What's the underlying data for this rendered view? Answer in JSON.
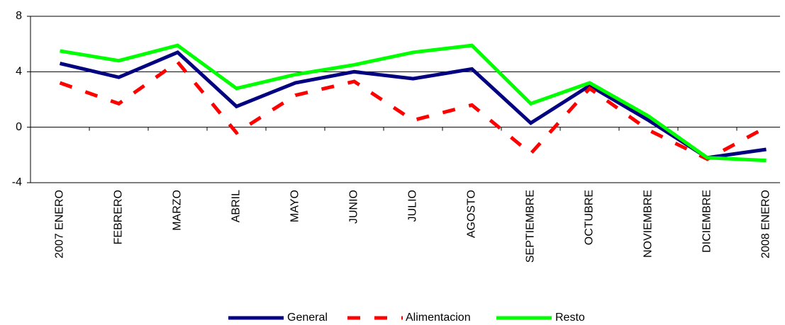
{
  "chart_data": {
    "type": "line",
    "categories": [
      "2007 ENERO",
      "FEBRERO",
      "MARZO",
      "ABRIL",
      "MAYO",
      "JUNIO",
      "JULIO",
      "AGOSTO",
      "SEPTIEMBRE",
      "OCTUBRE",
      "NOVIEMBRE",
      "DICIEMBRE",
      "2008 ENERO"
    ],
    "series": [
      {
        "name": "General",
        "color": "#000080",
        "values": [
          4.6,
          3.6,
          5.4,
          1.5,
          3.2,
          4.0,
          3.5,
          4.2,
          0.3,
          3.0,
          0.5,
          -2.2,
          -1.6
        ]
      },
      {
        "name": "Alimentacion",
        "color": "#ff0000",
        "dashed": true,
        "values": [
          3.2,
          1.7,
          4.7,
          -0.4,
          2.3,
          3.3,
          0.5,
          1.6,
          -1.9,
          2.8,
          -0.2,
          -2.3,
          0.0
        ]
      },
      {
        "name": "Resto",
        "color": "#00ff00",
        "values": [
          5.5,
          4.8,
          5.9,
          2.8,
          3.8,
          4.5,
          5.4,
          5.9,
          1.7,
          3.2,
          0.8,
          -2.2,
          -2.4
        ]
      }
    ],
    "ylim": [
      -4,
      8
    ],
    "yticks": [
      -4,
      0,
      4,
      8
    ],
    "grid": true,
    "legend": "bottom"
  }
}
